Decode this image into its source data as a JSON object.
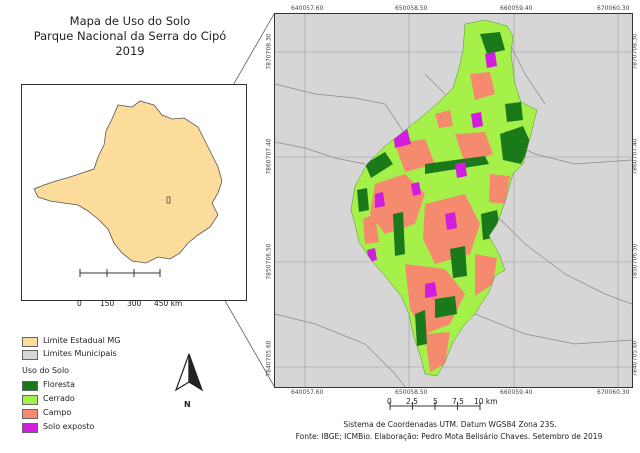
{
  "title": {
    "line1": "Mapa de Uso do Solo",
    "line2": "Parque Nacional da Serra do Cipó",
    "line3": "2019"
  },
  "inset_scale": {
    "ticks": [
      "0",
      "150",
      "300",
      "450 km"
    ]
  },
  "main_map": {
    "top_coords": [
      "640057.60",
      "650058.50",
      "660059.40",
      "670060.30"
    ],
    "bottom_coords": [
      "640057.60",
      "650058.50",
      "660059.40",
      "670060.30"
    ],
    "left_coords": [
      "7870708.30",
      "7860707.40",
      "7850706.50",
      "7840705.60"
    ],
    "right_coords": [
      "7870708.30",
      "7860707.40",
      "7850706.50",
      "7840705.60"
    ]
  },
  "legend": {
    "boundaries": [
      {
        "label": "Limite Estadual MG",
        "color": "#fbdc9a"
      },
      {
        "label": "Limites Municipais",
        "color": "#d6d6d6"
      }
    ],
    "land_use_title": "Uso do Solo",
    "land_use": [
      {
        "label": "Floresta",
        "color": "#1a7a1a"
      },
      {
        "label": "Cerrado",
        "color": "#a6f04a"
      },
      {
        "label": "Campo",
        "color": "#f58a6e"
      },
      {
        "label": "Solo exposto",
        "color": "#d21ce0"
      }
    ]
  },
  "north_arrow": {
    "label": "N"
  },
  "main_scale": {
    "ticks": [
      "0",
      "2.5",
      "5",
      "7.5",
      "10 km"
    ]
  },
  "footer": {
    "line1": "Sistema de Coordenadas UTM. Datum WGS84 Zona 23S.",
    "line2": "Fonte: IBGE; ICMBio. Elaboração: Pedro Mota Belisário Chaves. Setembro de 2019"
  }
}
